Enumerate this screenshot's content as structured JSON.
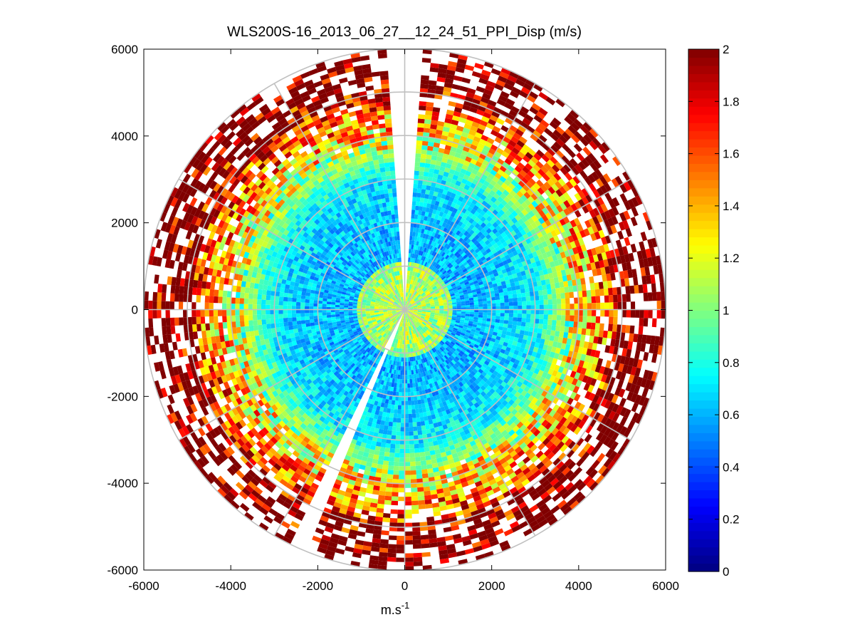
{
  "chart_data": {
    "type": "heatmap",
    "subtype": "polar-ppi",
    "title": "WLS200S-16_2013_06_27__12_24_51_PPI_Disp (m/s)",
    "xlabel": "m.s",
    "xlabel_superscript": "-1",
    "ylabel": "",
    "xlim": [
      -6000,
      6000
    ],
    "ylim": [
      -6000,
      6000
    ],
    "xticks": [
      -6000,
      -4000,
      -2000,
      0,
      2000,
      4000,
      6000
    ],
    "yticks": [
      6000,
      4000,
      2000,
      0,
      -2000,
      -4000,
      -6000
    ],
    "xtick_labels": [
      "-6000",
      "-4000",
      "-2000",
      "0",
      "2000",
      "4000",
      "6000"
    ],
    "ytick_labels": [
      "6000",
      "4000",
      "2000",
      "0",
      "-2000",
      "-4000",
      "-6000"
    ],
    "colorbar": {
      "min": 0,
      "max": 2,
      "ticks": [
        2,
        1.8,
        1.6,
        1.4,
        1.2,
        1,
        0.8,
        0.6,
        0.4,
        0.2,
        0
      ],
      "tick_labels": [
        "2",
        "1.8",
        "1.6",
        "1.4",
        "1.2",
        "1",
        "0.8",
        "0.6",
        "0.4",
        "0.2",
        "0"
      ],
      "colormap": "jet"
    },
    "max_range": 6000,
    "range_rings": [
      1000,
      2000,
      3000,
      4000,
      5000,
      6000
    ],
    "radial_lines_deg": [
      0,
      30,
      60,
      90,
      120,
      150,
      180,
      210,
      240,
      270,
      300,
      330
    ],
    "grid_color": "#c0c0c0",
    "no_data_sectors_deg": [
      [
        -4,
        4
      ],
      [
        202,
        206
      ]
    ],
    "field_profile": [
      {
        "range": 0,
        "value": 1.1
      },
      {
        "range": 1000,
        "value": 1.05
      },
      {
        "range": 1100,
        "value": 0.6
      },
      {
        "range": 2000,
        "value": 0.62
      },
      {
        "range": 3000,
        "value": 0.72
      },
      {
        "range": 4000,
        "value": 1.3
      },
      {
        "range": 5000,
        "value": 1.8
      },
      {
        "range": 6000,
        "value": 2.0
      }
    ]
  }
}
